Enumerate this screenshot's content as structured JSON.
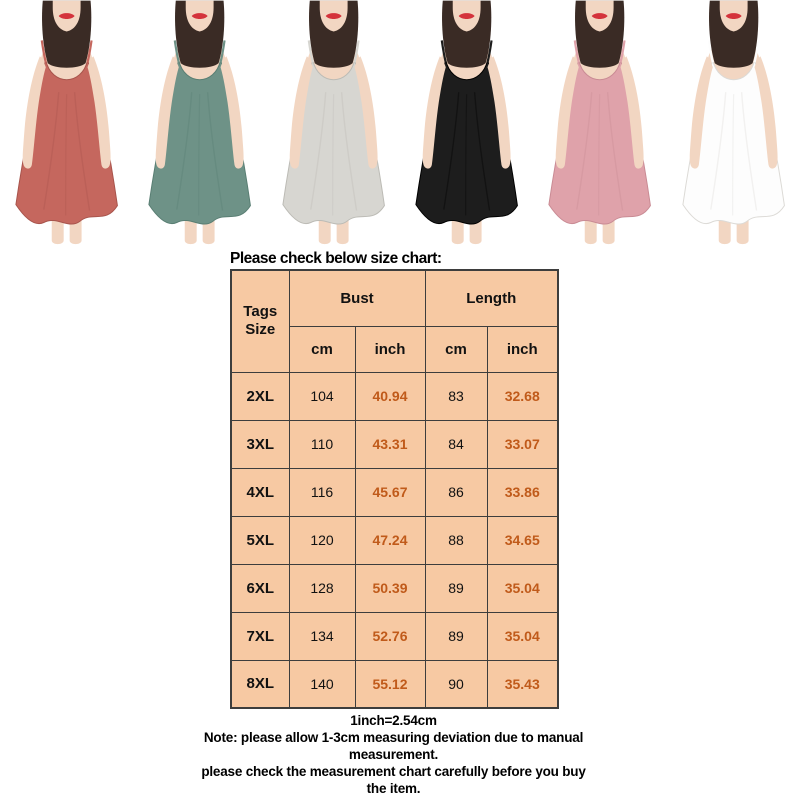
{
  "gallery": {
    "skin_hex": "#f2d6c2",
    "hair_hex": "#3a2b25",
    "lip_hex": "#d4333c",
    "items": [
      {
        "id": "coral",
        "label": "coral red slip dress",
        "dress_hex": "#c5675e",
        "edge_hex": "#a8544c"
      },
      {
        "id": "green",
        "label": "sage green slip dress",
        "dress_hex": "#6e9287",
        "edge_hex": "#597e73"
      },
      {
        "id": "gray",
        "label": "light gray slip dress",
        "dress_hex": "#d7d6d1",
        "edge_hex": "#bcbbb5"
      },
      {
        "id": "black",
        "label": "black slip dress",
        "dress_hex": "#1d1d1d",
        "edge_hex": "#000000"
      },
      {
        "id": "pink",
        "label": "dusty pink slip dress",
        "dress_hex": "#dfa2aa",
        "edge_hex": "#c98b94"
      },
      {
        "id": "white",
        "label": "white slip dress",
        "dress_hex": "#fdfdfd",
        "edge_hex": "#dcdad6"
      }
    ]
  },
  "size_chart": {
    "title": "Please check below size chart:",
    "header": {
      "tags_size": "Tags Size",
      "bust": "Bust",
      "length": "Length",
      "cm": "cm",
      "inch": "inch"
    },
    "rows": [
      {
        "size": "2XL",
        "bust_cm": "104",
        "bust_inch": "40.94",
        "length_cm": "83",
        "length_inch": "32.68"
      },
      {
        "size": "3XL",
        "bust_cm": "110",
        "bust_inch": "43.31",
        "length_cm": "84",
        "length_inch": "33.07"
      },
      {
        "size": "4XL",
        "bust_cm": "116",
        "bust_inch": "45.67",
        "length_cm": "86",
        "length_inch": "33.86"
      },
      {
        "size": "5XL",
        "bust_cm": "120",
        "bust_inch": "47.24",
        "length_cm": "88",
        "length_inch": "34.65"
      },
      {
        "size": "6XL",
        "bust_cm": "128",
        "bust_inch": "50.39",
        "length_cm": "89",
        "length_inch": "35.04"
      },
      {
        "size": "7XL",
        "bust_cm": "134",
        "bust_inch": "52.76",
        "length_cm": "89",
        "length_inch": "35.04"
      },
      {
        "size": "8XL",
        "bust_cm": "140",
        "bust_inch": "55.12",
        "length_cm": "90",
        "length_inch": "35.43"
      }
    ],
    "colors": {
      "cell_bg": "#f7c9a3",
      "border": "#3d3d3d",
      "inch_text": "#c05a1a"
    }
  },
  "notes": {
    "conversion": "1inch=2.54cm",
    "deviation": "Note: please allow 1-3cm measuring deviation due to manual measurement.",
    "check": "please check the measurement chart carefully before you buy the item."
  }
}
